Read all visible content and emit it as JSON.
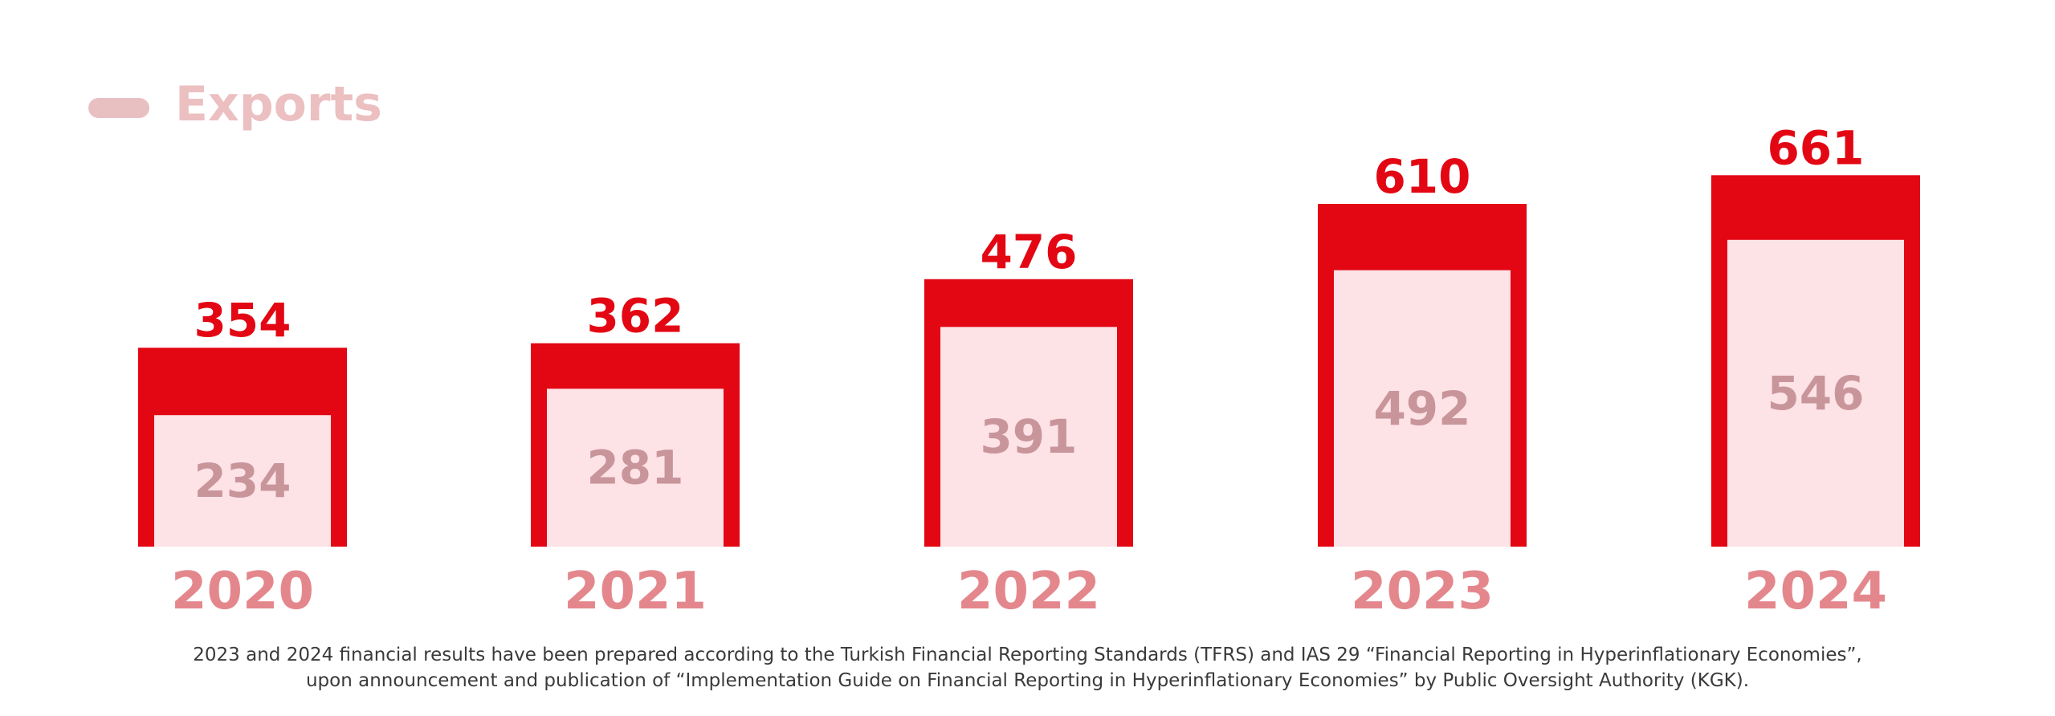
{
  "chart_data": {
    "type": "bar",
    "title": "Exports",
    "categories": [
      "2020",
      "2021",
      "2022",
      "2023",
      "2024"
    ],
    "series": [
      {
        "values": [
          354,
          362,
          476,
          610,
          661
        ]
      },
      {
        "values": [
          234,
          281,
          391,
          492,
          546
        ]
      }
    ],
    "colors": {
      "outer": "#e30613",
      "inner": "#fde2e6",
      "outer_label": "#e30613",
      "inner_label": "#c8959b",
      "category_label": "#e4878d",
      "title": "#ecbfc1",
      "legend_swatch": "#e8c0c2"
    }
  },
  "footnote": {
    "line1": "2023 and 2024 financial results have been prepared according to the Turkish Financial Reporting Standards (TFRS) and IAS 29 “Financial Reporting in Hyperinflationary Economies”,",
    "line2": "upon announcement and publication of “Implementation Guide on Financial Reporting in Hyperinflationary Economies” by Public Oversight Authority (KGK)."
  }
}
